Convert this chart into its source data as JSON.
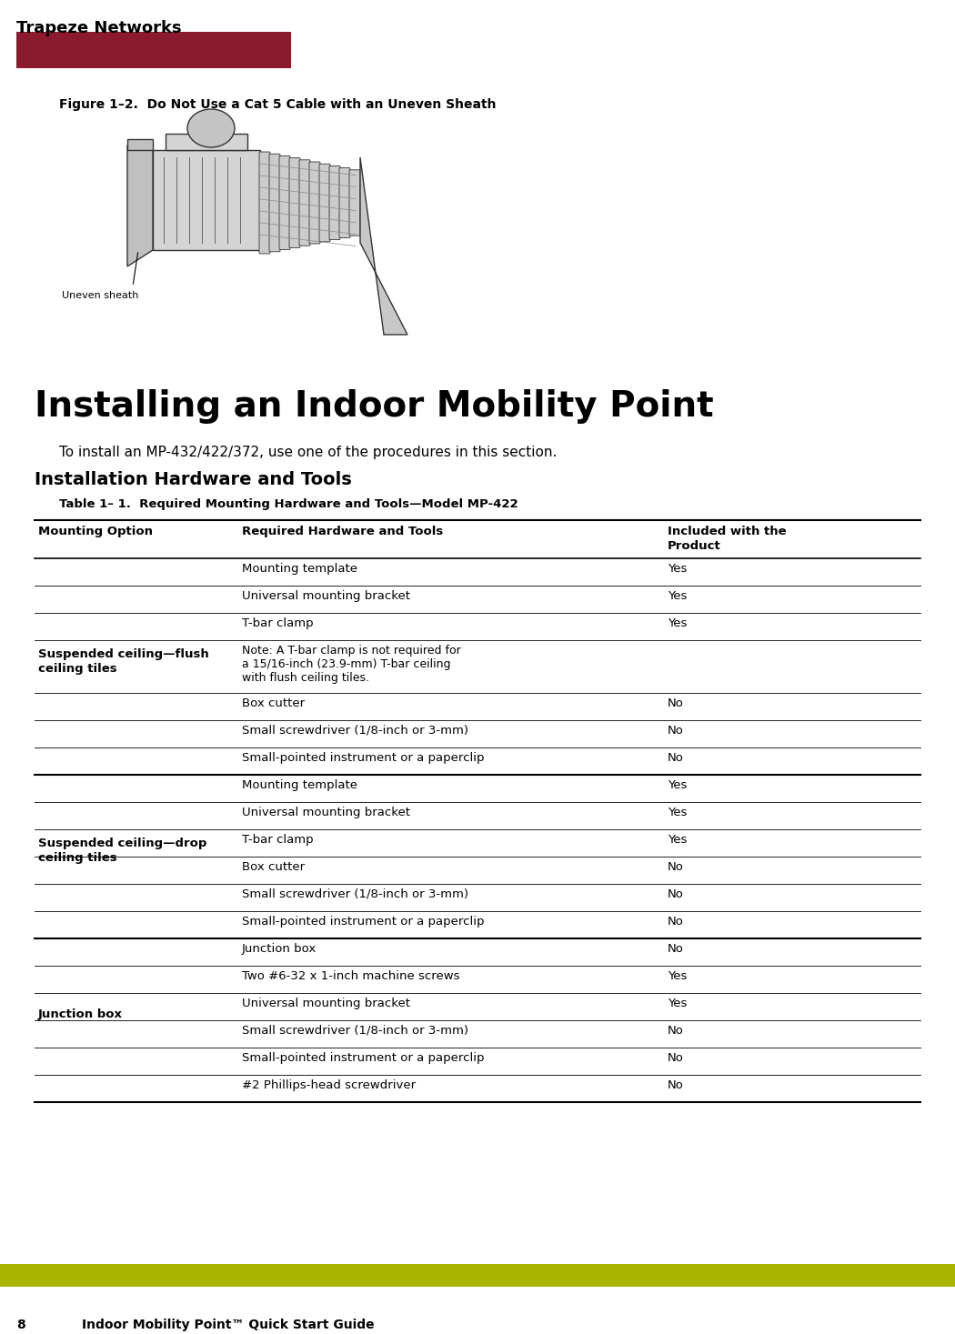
{
  "page_width": 10.5,
  "page_height": 14.67,
  "dpi": 100,
  "bg_color": "#ffffff",
  "header_text": "Trapeze Networks",
  "header_bar_color": "#8B1A2E",
  "footer_bar_color": "#A8B400",
  "footer_text_num": "8",
  "footer_text_title": "Indoor Mobility Point™ Quick Start Guide",
  "figure_caption": "Figure 1–2.  Do Not Use a Cat 5 Cable with an Uneven Sheath",
  "section_title": "Installing an Indoor Mobility Point",
  "section_body": "To install an MP-432/422/372, use one of the procedures in this section.",
  "subsection_title": "Installation Hardware and Tools",
  "table_title": "Table 1– 1.  Required Mounting Hardware and Tools—Model MP-422",
  "col_headers": [
    "Mounting Option",
    "Required Hardware and Tools",
    "Included with the\nProduct"
  ],
  "rows": [
    [
      "Suspended ceiling—flush\nceiling tiles",
      "Mounting template",
      "Yes"
    ],
    [
      "",
      "Universal mounting bracket",
      "Yes"
    ],
    [
      "",
      "T-bar clamp",
      "Yes"
    ],
    [
      "",
      "Note: A T-bar clamp is not required for\na 15/16-inch (23.9-mm) T-bar ceiling\nwith flush ceiling tiles.",
      ""
    ],
    [
      "",
      "Box cutter",
      "No"
    ],
    [
      "",
      "Small screwdriver (1/8-inch or 3-mm)",
      "No"
    ],
    [
      "",
      "Small-pointed instrument or a paperclip",
      "No"
    ],
    [
      "Suspended ceiling—drop\nceiling tiles",
      "Mounting template",
      "Yes"
    ],
    [
      "",
      "Universal mounting bracket",
      "Yes"
    ],
    [
      "",
      "T-bar clamp",
      "Yes"
    ],
    [
      "",
      "Box cutter",
      "No"
    ],
    [
      "",
      "Small screwdriver (1/8-inch or 3-mm)",
      "No"
    ],
    [
      "",
      "Small-pointed instrument or a paperclip",
      "No"
    ],
    [
      "Junction box",
      "Junction box",
      "No"
    ],
    [
      "",
      "Two #6-32 x 1-inch machine screws",
      "Yes"
    ],
    [
      "",
      "Universal mounting bracket",
      "Yes"
    ],
    [
      "",
      "Small screwdriver (1/8-inch or 3-mm)",
      "No"
    ],
    [
      "",
      "Small-pointed instrument or a paperclip",
      "No"
    ],
    [
      "",
      "#2 Phillips-head screwdriver",
      "No"
    ]
  ],
  "group_boundaries": [
    0,
    7,
    13,
    19
  ],
  "group_labels": [
    "Suspended ceiling—flush\nceiling tiles",
    "Suspended ceiling—drop\nceiling tiles",
    "Junction box"
  ],
  "uneven_sheath_label": "Uneven sheath",
  "connector_color": "#d4d4d4",
  "connector_edge": "#333333",
  "cable_color": "#c8c8c8",
  "cable_edge": "#333333"
}
